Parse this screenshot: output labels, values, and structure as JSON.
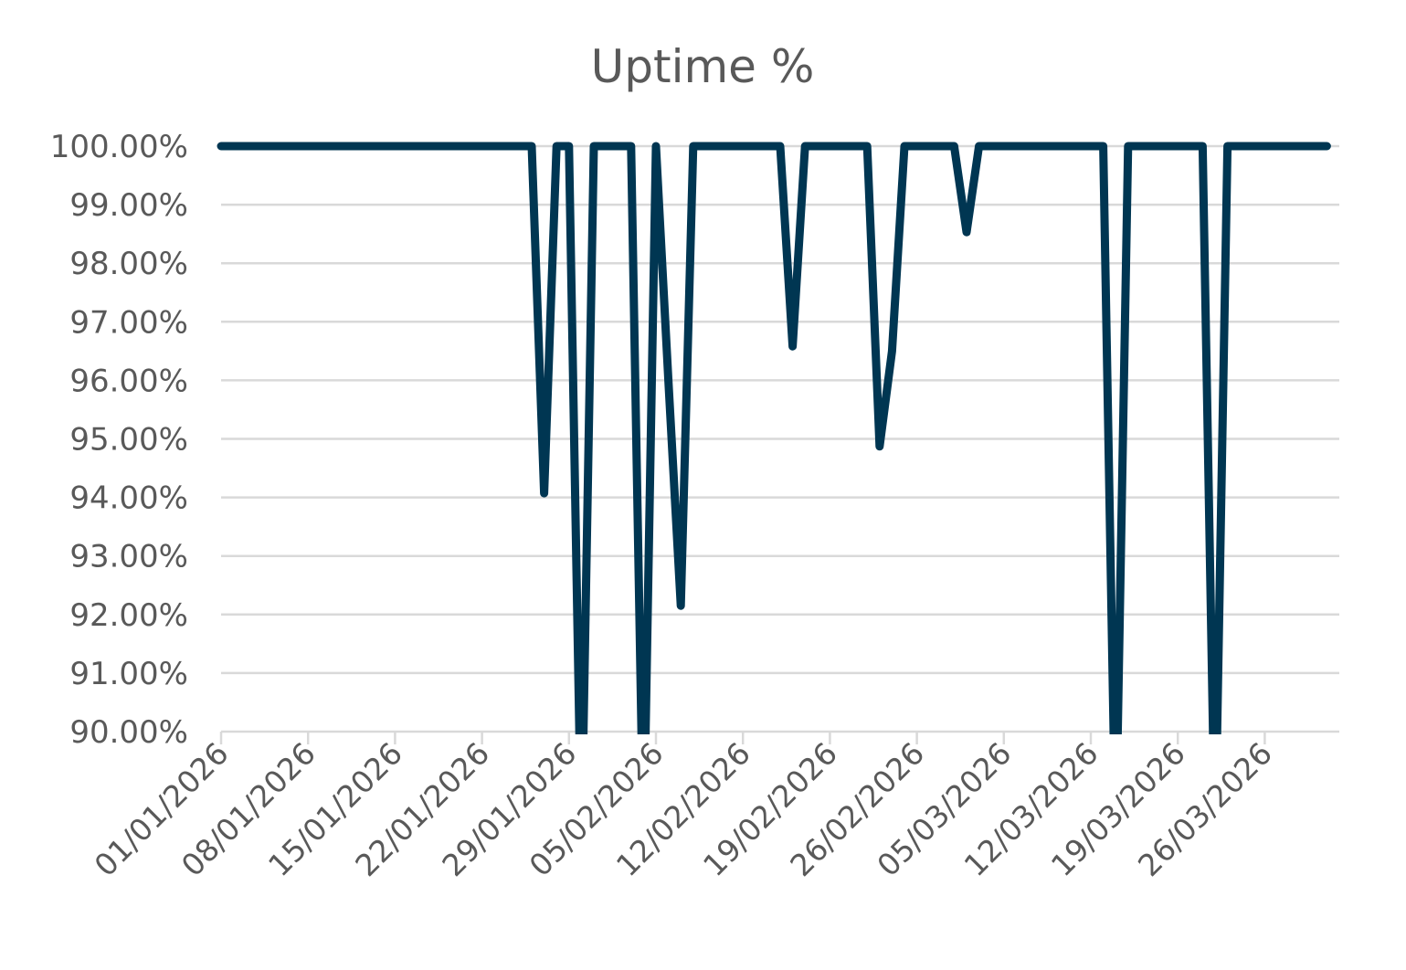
{
  "chart_data": {
    "type": "line",
    "title": "Uptime %",
    "xlabel": "",
    "ylabel": "",
    "ylim": [
      0.9,
      1.0
    ],
    "y_ticks": [
      {
        "value": 1.0,
        "label": "100.00%"
      },
      {
        "value": 0.99,
        "label": "99.00%"
      },
      {
        "value": 0.98,
        "label": "98.00%"
      },
      {
        "value": 0.97,
        "label": "97.00%"
      },
      {
        "value": 0.96,
        "label": "96.00%"
      },
      {
        "value": 0.95,
        "label": "95.00%"
      },
      {
        "value": 0.94,
        "label": "94.00%"
      },
      {
        "value": 0.93,
        "label": "93.00%"
      },
      {
        "value": 0.92,
        "label": "92.00%"
      },
      {
        "value": 0.91,
        "label": "91.00%"
      },
      {
        "value": 0.9,
        "label": "90.00%"
      }
    ],
    "x_ticks": [
      {
        "date": "2026-01-01",
        "label": "01/01/2026"
      },
      {
        "date": "2026-01-08",
        "label": "08/01/2026"
      },
      {
        "date": "2026-01-15",
        "label": "15/01/2026"
      },
      {
        "date": "2026-01-22",
        "label": "22/01/2026"
      },
      {
        "date": "2026-01-29",
        "label": "29/01/2026"
      },
      {
        "date": "2026-02-05",
        "label": "05/02/2026"
      },
      {
        "date": "2026-02-12",
        "label": "12/02/2026"
      },
      {
        "date": "2026-02-19",
        "label": "19/02/2026"
      },
      {
        "date": "2026-02-26",
        "label": "26/02/2026"
      },
      {
        "date": "2026-03-05",
        "label": "05/03/2026"
      },
      {
        "date": "2026-03-12",
        "label": "12/03/2026"
      },
      {
        "date": "2026-03-19",
        "label": "19/03/2026"
      },
      {
        "date": "2026-03-26",
        "label": "26/03/2026"
      }
    ],
    "xlim": [
      "2026-01-01",
      "2026-04-01"
    ],
    "grid": true,
    "legend": "none",
    "series_color": "#003652",
    "series": [
      {
        "points": [
          [
            "2026-01-01",
            1.0
          ],
          [
            "2026-01-02",
            1.0
          ],
          [
            "2026-01-03",
            1.0
          ],
          [
            "2026-01-04",
            1.0
          ],
          [
            "2026-01-05",
            1.0
          ],
          [
            "2026-01-06",
            1.0
          ],
          [
            "2026-01-07",
            1.0
          ],
          [
            "2026-01-08",
            1.0
          ],
          [
            "2026-01-09",
            1.0
          ],
          [
            "2026-01-10",
            1.0
          ],
          [
            "2026-01-11",
            1.0
          ],
          [
            "2026-01-12",
            1.0
          ],
          [
            "2026-01-13",
            1.0
          ],
          [
            "2026-01-14",
            1.0
          ],
          [
            "2026-01-15",
            1.0
          ],
          [
            "2026-01-16",
            1.0
          ],
          [
            "2026-01-17",
            1.0
          ],
          [
            "2026-01-18",
            1.0
          ],
          [
            "2026-01-19",
            1.0
          ],
          [
            "2026-01-20",
            1.0
          ],
          [
            "2026-01-21",
            1.0
          ],
          [
            "2026-01-22",
            1.0
          ],
          [
            "2026-01-23",
            1.0
          ],
          [
            "2026-01-24",
            1.0
          ],
          [
            "2026-01-25",
            1.0
          ],
          [
            "2026-01-26",
            1.0
          ],
          [
            "2026-01-27",
            0.9407
          ],
          [
            "2026-01-28",
            1.0
          ],
          [
            "2026-01-29",
            1.0
          ],
          [
            "2026-01-30",
            0.88
          ],
          [
            "2026-01-31",
            1.0
          ],
          [
            "2026-02-01",
            1.0
          ],
          [
            "2026-02-02",
            1.0
          ],
          [
            "2026-02-03",
            1.0
          ],
          [
            "2026-02-04",
            0.88
          ],
          [
            "2026-02-05",
            1.0
          ],
          [
            "2026-02-06",
            0.96
          ],
          [
            "2026-02-07",
            0.9215
          ],
          [
            "2026-02-08",
            1.0
          ],
          [
            "2026-02-09",
            1.0
          ],
          [
            "2026-02-10",
            1.0
          ],
          [
            "2026-02-11",
            1.0
          ],
          [
            "2026-02-12",
            1.0
          ],
          [
            "2026-02-13",
            1.0
          ],
          [
            "2026-02-14",
            1.0
          ],
          [
            "2026-02-15",
            1.0
          ],
          [
            "2026-02-16",
            0.9658
          ],
          [
            "2026-02-17",
            1.0
          ],
          [
            "2026-02-18",
            1.0
          ],
          [
            "2026-02-19",
            1.0
          ],
          [
            "2026-02-20",
            1.0
          ],
          [
            "2026-02-21",
            1.0
          ],
          [
            "2026-02-22",
            1.0
          ],
          [
            "2026-02-23",
            0.9487
          ],
          [
            "2026-02-24",
            0.965
          ],
          [
            "2026-02-25",
            1.0
          ],
          [
            "2026-02-26",
            1.0
          ],
          [
            "2026-02-27",
            1.0
          ],
          [
            "2026-02-28",
            1.0
          ],
          [
            "2026-03-01",
            1.0
          ],
          [
            "2026-03-02",
            0.9853
          ],
          [
            "2026-03-03",
            1.0
          ],
          [
            "2026-03-04",
            1.0
          ],
          [
            "2026-03-05",
            1.0
          ],
          [
            "2026-03-06",
            1.0
          ],
          [
            "2026-03-07",
            1.0
          ],
          [
            "2026-03-08",
            1.0
          ],
          [
            "2026-03-09",
            1.0
          ],
          [
            "2026-03-10",
            1.0
          ],
          [
            "2026-03-11",
            1.0
          ],
          [
            "2026-03-12",
            1.0
          ],
          [
            "2026-03-13",
            1.0
          ],
          [
            "2026-03-14",
            0.88
          ],
          [
            "2026-03-15",
            1.0
          ],
          [
            "2026-03-16",
            1.0
          ],
          [
            "2026-03-17",
            1.0
          ],
          [
            "2026-03-18",
            1.0
          ],
          [
            "2026-03-19",
            1.0
          ],
          [
            "2026-03-20",
            1.0
          ],
          [
            "2026-03-21",
            1.0
          ],
          [
            "2026-03-22",
            0.88
          ],
          [
            "2026-03-23",
            1.0
          ],
          [
            "2026-03-24",
            1.0
          ],
          [
            "2026-03-25",
            1.0
          ],
          [
            "2026-03-26",
            1.0
          ],
          [
            "2026-03-27",
            1.0
          ],
          [
            "2026-03-28",
            1.0
          ],
          [
            "2026-03-29",
            1.0
          ],
          [
            "2026-03-30",
            1.0
          ],
          [
            "2026-03-31",
            1.0
          ]
        ]
      }
    ]
  }
}
